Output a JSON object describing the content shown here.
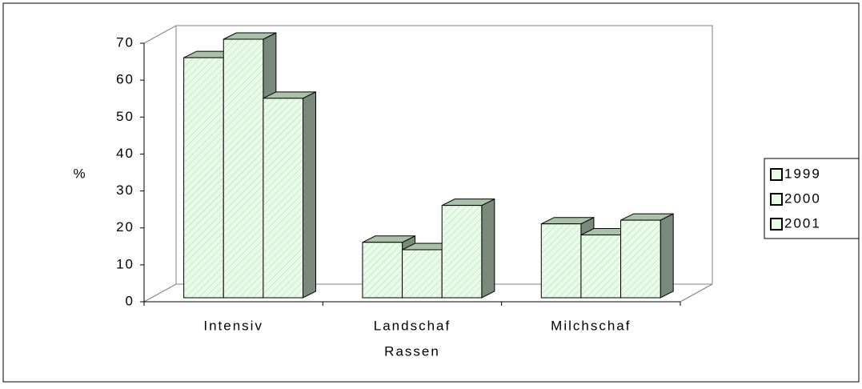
{
  "chart_data": {
    "type": "bar3d",
    "y_label": "%",
    "x_label": "Rassen",
    "categories": [
      "Intensiv",
      "Landschaf",
      "Milchschaf"
    ],
    "series": [
      {
        "name": "1999",
        "color": "#e8fbe8",
        "values": [
          65,
          15,
          20
        ]
      },
      {
        "name": "2000",
        "color": "#e8fbe8",
        "values": [
          70,
          13,
          17
        ]
      },
      {
        "name": "2001",
        "color": "#e8fbe8",
        "values": [
          54,
          25,
          21
        ]
      }
    ],
    "ylim": [
      0,
      70
    ],
    "yticks": [
      0,
      10,
      20,
      30,
      40,
      50,
      60,
      70
    ],
    "legend": "right"
  }
}
